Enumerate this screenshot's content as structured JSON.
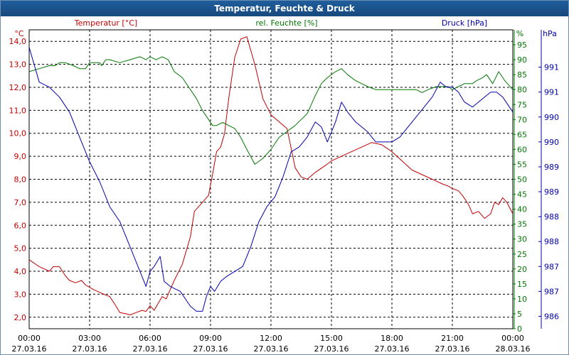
{
  "window": {
    "title": "Temperatur, Feuchte & Druck"
  },
  "colors": {
    "temp": "#c00000",
    "hum": "#007800",
    "press": "#0000b0",
    "grid": "#000000",
    "axis_text": "#000000"
  },
  "chart_data": {
    "type": "line",
    "title": "Temperatur, Feuchte & Druck",
    "x_ticks": [
      {
        "time": "00:00",
        "date": "27.03.16"
      },
      {
        "time": "03:00",
        "date": "27.03.16"
      },
      {
        "time": "06:00",
        "date": "27.03.16"
      },
      {
        "time": "09:00",
        "date": "27.03.16"
      },
      {
        "time": "12:00",
        "date": "27.03.16"
      },
      {
        "time": "15:00",
        "date": "27.03.16"
      },
      {
        "time": "18:00",
        "date": "27.03.16"
      },
      {
        "time": "21:00",
        "date": "27.03.16"
      },
      {
        "time": "00:00",
        "date": "28.03.16"
      }
    ],
    "xlim": [
      0,
      24
    ],
    "axes": {
      "temp": {
        "label": "Temperatur [°C]",
        "unit": "°C",
        "ylim": [
          1.5,
          14.5
        ],
        "ticks": [
          "2,0",
          "3,0",
          "4,0",
          "5,0",
          "6,0",
          "7,0",
          "8,0",
          "9,0",
          "10,0",
          "11,0",
          "12,0",
          "13,0",
          "14,0"
        ]
      },
      "hum": {
        "label": "rel. Feuchte [%]",
        "unit": "%",
        "ylim": [
          0,
          100
        ],
        "ticks": [
          "0",
          "5",
          "10",
          "15",
          "20",
          "25",
          "30",
          "35",
          "40",
          "45",
          "50",
          "55",
          "60",
          "65",
          "70",
          "75",
          "80",
          "85",
          "90",
          "95"
        ]
      },
      "press": {
        "label": "Druck [hPa]",
        "unit": "hPa",
        "ylim": [
          985.75,
          991.75
        ],
        "ticks": [
          "986",
          "987",
          "987",
          "988",
          "988",
          "989",
          "989",
          "990",
          "990",
          "991",
          "991"
        ]
      }
    },
    "series": [
      {
        "name": "Temperatur",
        "axis": "temp",
        "x": [
          0,
          0.5,
          1,
          1.2,
          1.5,
          1.8,
          2,
          2.3,
          2.6,
          2.8,
          3.2,
          3.7,
          4,
          4.3,
          4.5,
          4.8,
          5,
          5.3,
          5.6,
          5.8,
          6,
          6.2,
          6.4,
          6.6,
          6.8,
          7,
          7.2,
          7.6,
          8,
          8.2,
          8.6,
          8.9,
          9.1,
          9.3,
          9.5,
          9.7,
          9.9,
          10.2,
          10.5,
          10.8,
          11.2,
          11.6,
          12,
          12.4,
          12.8,
          13.2,
          13.5,
          13.8,
          14.2,
          14.7,
          15,
          15.5,
          16,
          16.5,
          17,
          17.5,
          18,
          18.5,
          19,
          19.5,
          20,
          20.5,
          20.8,
          21,
          21.3,
          21.5,
          21.8,
          22,
          22.3,
          22.6,
          22.9,
          23.1,
          23.3,
          23.5,
          23.7,
          24
        ],
        "values": [
          4.5,
          4.2,
          4.0,
          4.2,
          4.2,
          3.8,
          3.6,
          3.5,
          3.6,
          3.4,
          3.2,
          3.0,
          2.9,
          2.5,
          2.2,
          2.15,
          2.1,
          2.2,
          2.3,
          2.25,
          2.5,
          2.3,
          2.6,
          2.9,
          2.8,
          3.2,
          3.6,
          4.3,
          5.5,
          6.6,
          7.0,
          7.3,
          8.2,
          9.2,
          9.4,
          10.0,
          11.5,
          13.3,
          14.1,
          14.2,
          13.0,
          11.5,
          10.8,
          10.5,
          10.2,
          8.5,
          8.1,
          8.0,
          8.3,
          8.6,
          8.8,
          9.0,
          9.2,
          9.4,
          9.6,
          9.5,
          9.2,
          8.8,
          8.4,
          8.2,
          8.0,
          7.8,
          7.7,
          7.6,
          7.5,
          7.3,
          6.9,
          6.5,
          6.6,
          6.3,
          6.5,
          7.0,
          6.9,
          7.2,
          7.0,
          6.5
        ]
      },
      {
        "name": "rel. Feuchte",
        "axis": "hum",
        "x": [
          0,
          0.5,
          1,
          1.3,
          1.5,
          1.8,
          2.2,
          2.5,
          2.8,
          3.0,
          3.3,
          3.5,
          3.6,
          3.7,
          3.8,
          4,
          4.5,
          5,
          5.5,
          5.8,
          6,
          6.3,
          6.6,
          6.9,
          7.2,
          7.6,
          8,
          8.3,
          8.6,
          8.9,
          9.1,
          9.3,
          9.6,
          9.9,
          10.2,
          10.5,
          10.8,
          11.2,
          11.6,
          12,
          12.4,
          12.8,
          13.2,
          13.5,
          13.8,
          14.2,
          14.5,
          14.8,
          15.2,
          15.5,
          15.8,
          16.2,
          16.5,
          16.8,
          17.2,
          17.5,
          17.8,
          18.2,
          18.5,
          18.8,
          19.2,
          19.5,
          19.8,
          20.2,
          20.5,
          20.8,
          21,
          21.3,
          21.6,
          21.8,
          22,
          22.2,
          22.5,
          22.7,
          23,
          23.3,
          23.6,
          24
        ],
        "values": [
          86,
          87,
          88,
          88,
          89,
          89,
          88,
          87,
          87,
          89,
          89,
          89,
          88,
          89,
          90,
          90,
          89,
          90,
          91,
          90,
          91,
          90,
          91,
          90,
          86,
          84,
          80,
          77,
          73,
          70,
          68,
          68,
          69,
          68,
          67,
          64,
          60,
          55,
          57,
          60,
          64,
          66,
          68,
          70,
          72,
          78,
          82,
          84,
          86,
          87,
          85,
          83,
          82,
          81,
          80,
          80,
          80,
          80,
          80,
          80,
          80,
          79,
          80,
          81,
          81,
          81,
          80,
          81,
          82,
          82,
          82,
          83,
          84,
          85,
          82,
          86,
          83,
          80
        ]
      },
      {
        "name": "Druck",
        "axis": "press",
        "x": [
          0,
          0.5,
          1,
          1.5,
          2,
          2.5,
          3,
          3.5,
          4,
          4.5,
          5,
          5.5,
          5.8,
          6,
          6.2,
          6.5,
          6.7,
          7,
          7.5,
          8,
          8.3,
          8.6,
          8.8,
          9,
          9.2,
          9.5,
          9.8,
          10.2,
          10.6,
          11,
          11.4,
          11.8,
          12.2,
          12.6,
          13,
          13.4,
          13.8,
          14.2,
          14.5,
          14.8,
          15.2,
          15.5,
          15.8,
          16.2,
          16.5,
          16.8,
          17.2,
          17.6,
          18,
          18.4,
          18.8,
          19.2,
          19.6,
          20,
          20.4,
          20.7,
          21,
          21.3,
          21.6,
          22,
          22.3,
          22.6,
          22.9,
          23.2,
          23.5,
          24
        ],
        "values": [
          991.4,
          990.7,
          990.6,
          990.4,
          990.1,
          989.6,
          989.1,
          988.7,
          988.2,
          987.9,
          987.4,
          986.9,
          986.6,
          986.9,
          987.0,
          987.2,
          986.7,
          986.6,
          986.5,
          986.2,
          986.1,
          986.1,
          986.4,
          986.6,
          986.5,
          986.7,
          986.8,
          986.9,
          987.0,
          987.4,
          987.9,
          988.2,
          988.4,
          988.8,
          989.3,
          989.4,
          989.6,
          989.9,
          989.8,
          989.5,
          989.9,
          990.3,
          990.1,
          989.9,
          989.8,
          989.7,
          989.5,
          989.5,
          989.5,
          989.6,
          989.8,
          990.0,
          990.2,
          990.4,
          990.7,
          990.6,
          990.6,
          990.5,
          990.3,
          990.2,
          990.3,
          990.4,
          990.5,
          990.5,
          990.4,
          990.1
        ]
      }
    ]
  }
}
